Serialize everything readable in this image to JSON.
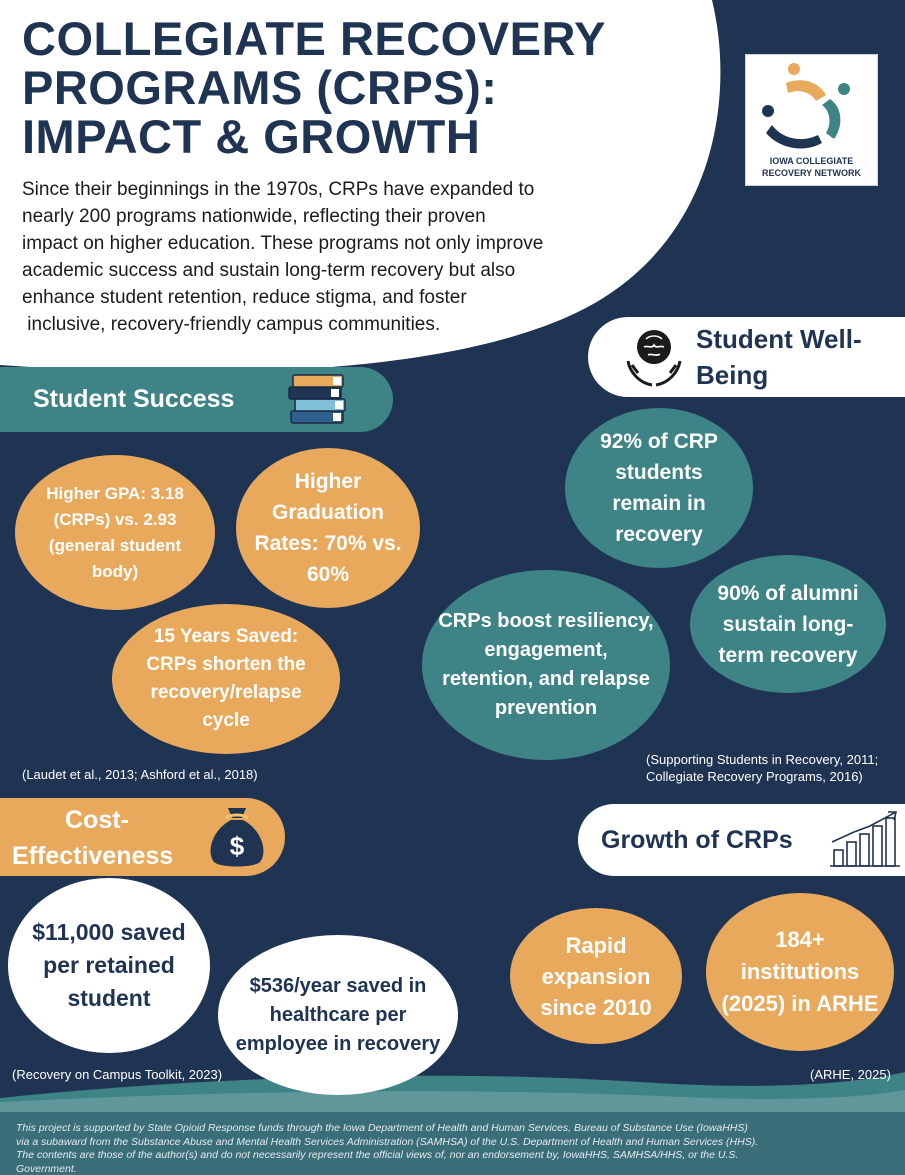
{
  "header": {
    "title_lines": [
      "COLLEGIATE RECOVERY",
      "PROGRAMS (CRPS):",
      "IMPACT & GROWTH"
    ],
    "intro_lines": [
      "Since their beginnings in the 1970s, CRPs have expanded to",
      "nearly 200 programs nationwide, reflecting their proven",
      "impact on higher education. These programs not only improve",
      "academic success and sustain long-term recovery but also",
      "enhance student retention, reduce stigma, and foster",
      " inclusive, recovery-friendly campus communities."
    ]
  },
  "logo": {
    "line1": "IOWA COLLEGIATE",
    "line2": "RECOVERY NETWORK",
    "colors": [
      "#e9a95c",
      "#1f3353",
      "#3e8385"
    ]
  },
  "student_success": {
    "heading": "Student Success",
    "icon": "books-icon",
    "stats": [
      "Higher GPA: 3.18 (CRPs) vs. 2.93 (general student body)",
      "Higher Graduation Rates: 70% vs. 60%",
      "15 Years Saved: CRPs shorten the recovery/relapse cycle"
    ],
    "citation": "(Laudet et al., 2013; Ashford et al., 2018)"
  },
  "student_wellbeing": {
    "heading_line1": "Student Well-",
    "heading_line2": "Being",
    "icon": "brain-in-hands-icon",
    "stats": [
      "92% of CRP students remain in recovery",
      "CRPs boost resiliency, engagement, retention, and relapse prevention",
      "90% of alumni sustain long-term recovery"
    ],
    "citation_line1": "(Supporting Students in Recovery, 2011;",
    "citation_line2": "Collegiate Recovery Programs, 2016)"
  },
  "cost_effectiveness": {
    "heading_line1": "Cost-",
    "heading_line2": "Effectiveness",
    "icon": "money-bag-icon",
    "stats": [
      "$11,000 saved per retained student",
      "$536/year saved in healthcare per employee in recovery"
    ],
    "citation": "(Recovery on Campus Toolkit, 2023)"
  },
  "growth": {
    "heading": "Growth of CRPs",
    "icon": "growth-chart-icon",
    "stats": [
      "Rapid expansion since 2010",
      "184+ institutions (2025) in ARHE"
    ],
    "citation": "(ARHE, 2025)"
  },
  "footer": {
    "lines": [
      "This project is supported by State Opioid Response funds through the Iowa Department of Health and Human Services, Bureau of Substance Use (IowaHHS)",
      "via a subaward from the Substance Abuse and Mental Health Services Administration (SAMHSA) of the U.S. Department of Health and Human Services (HHS).",
      "The contents are those of the author(s) and do not necessarily represent the official views of, nor an endorsement by, IowaHHS, SAMHSA/HHS, or the U.S.",
      "Government."
    ]
  },
  "colors": {
    "navy": "#1f3353",
    "teal": "#3e8385",
    "orange": "#e9a95c",
    "white": "#ffffff"
  }
}
